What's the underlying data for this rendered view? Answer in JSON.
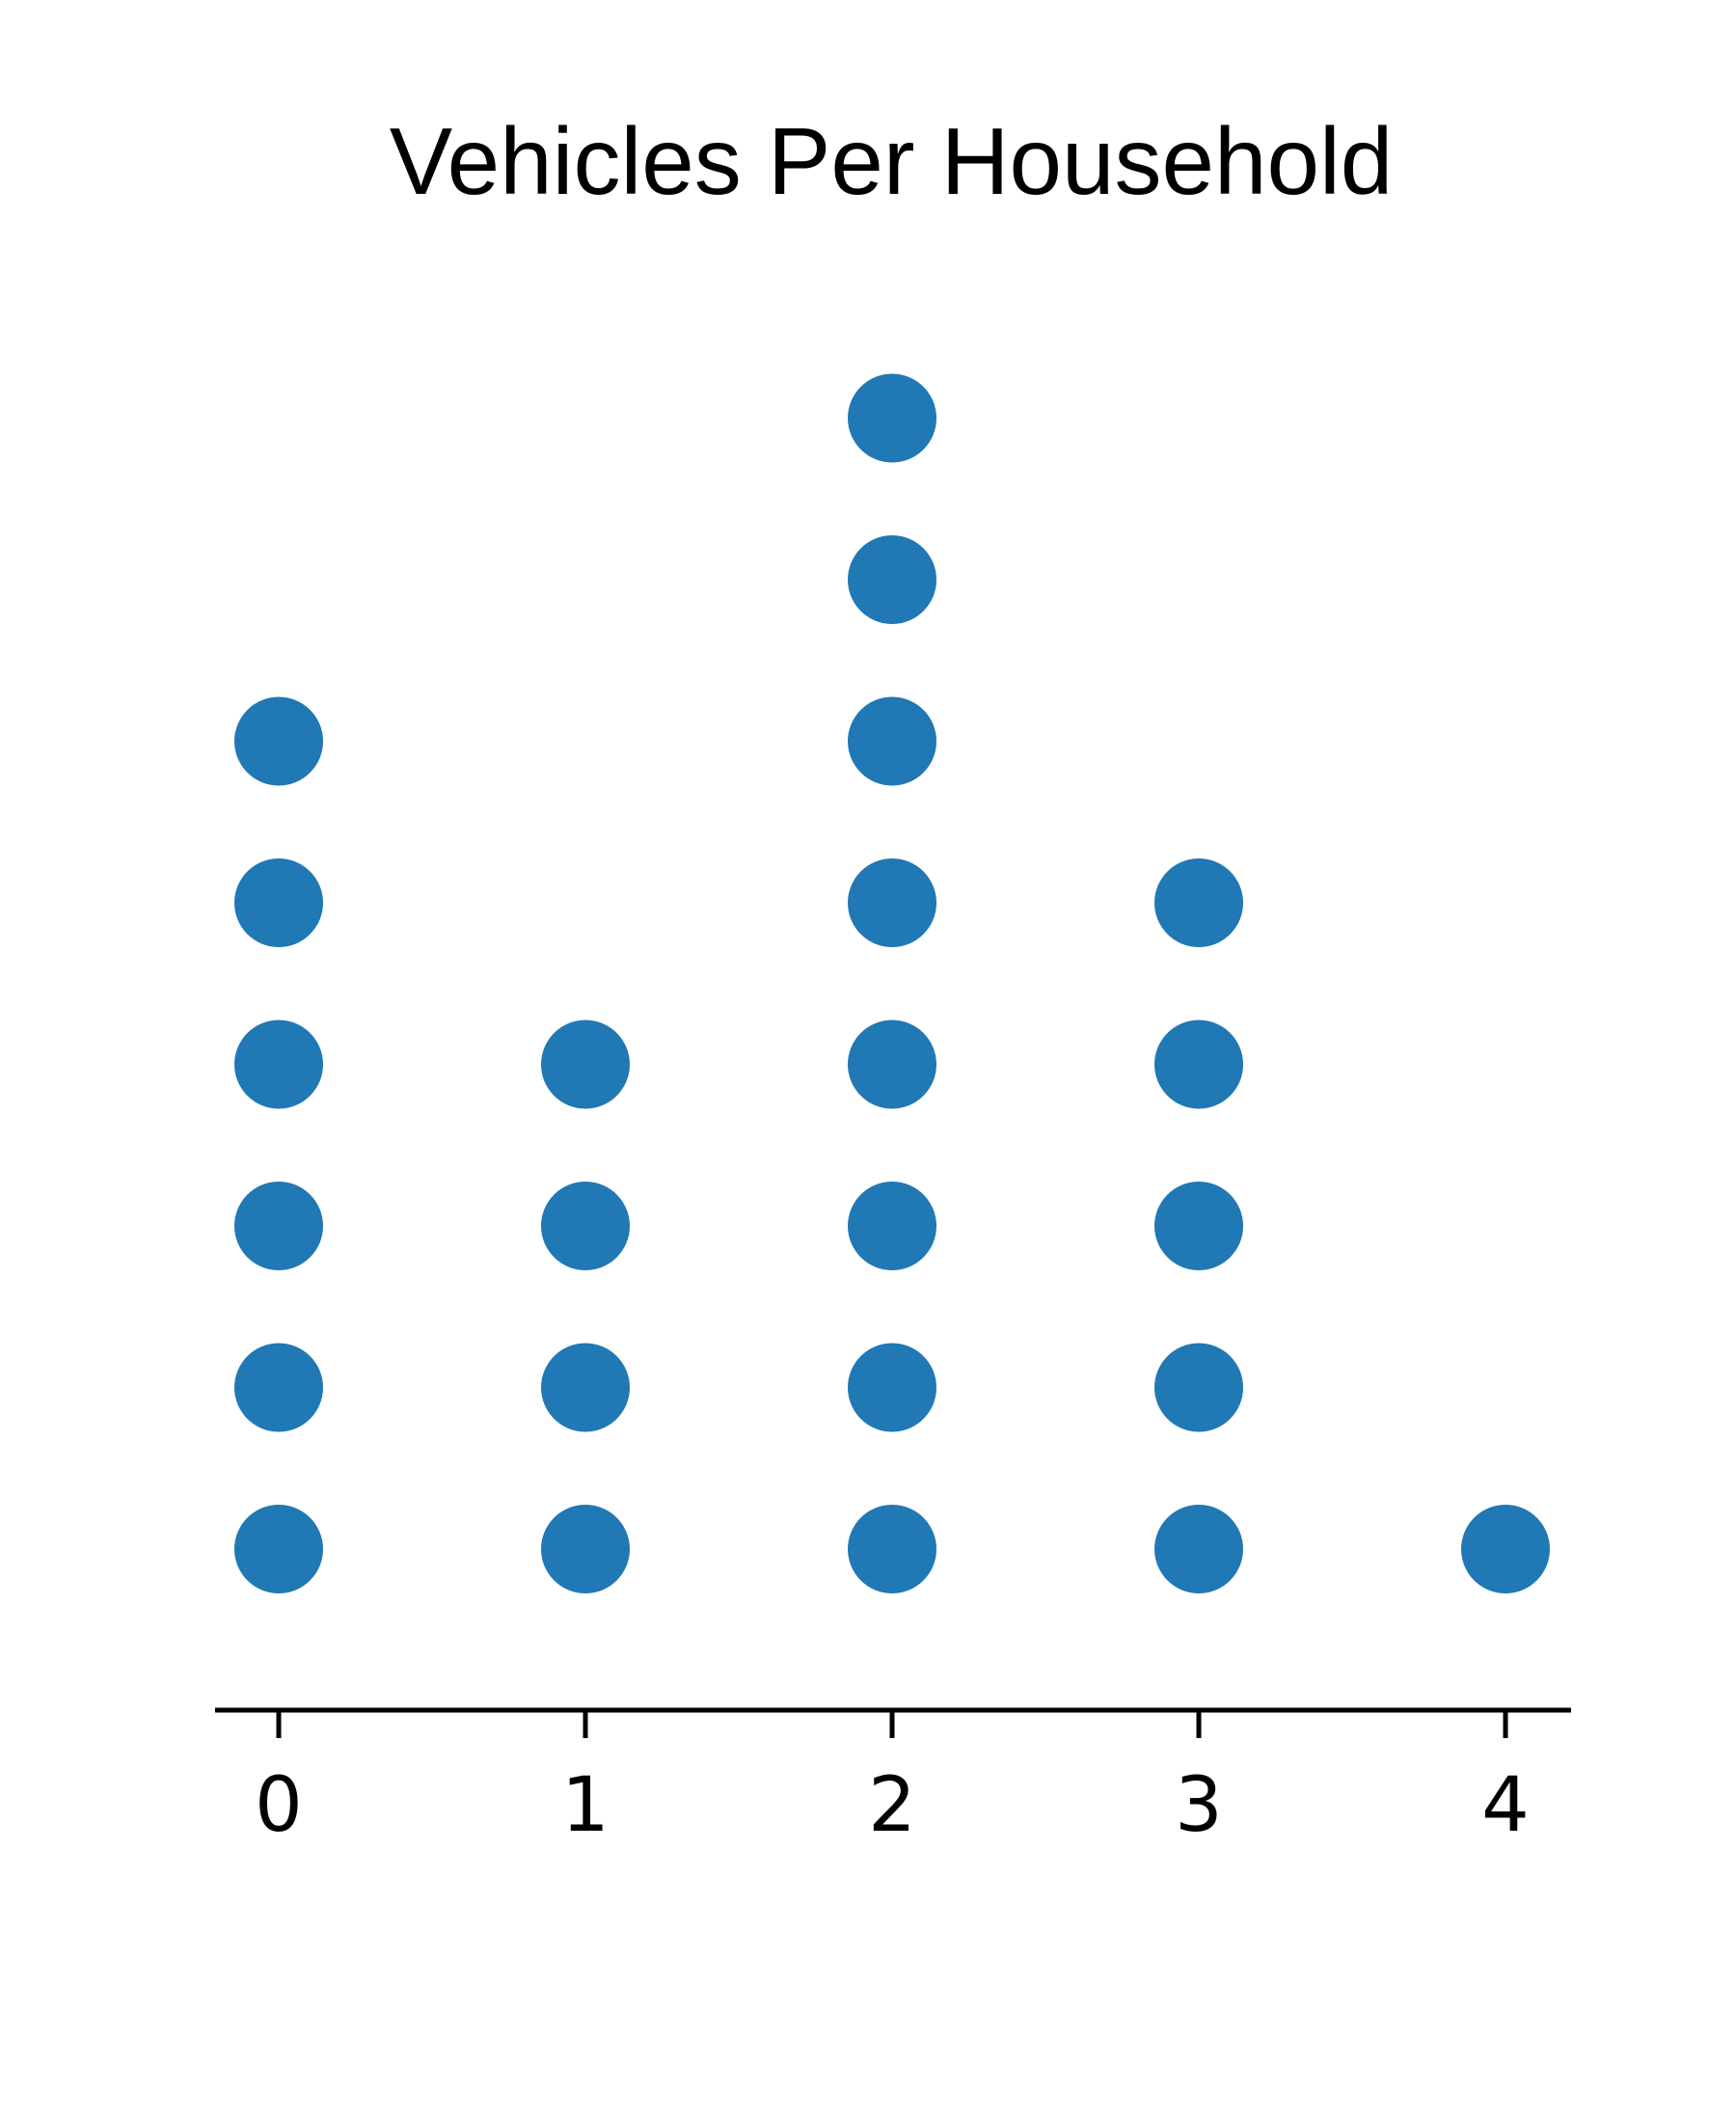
{
  "chart_data": {
    "type": "dot",
    "title": "Vehicles Per Household",
    "xlabel": "",
    "ylabel": "",
    "categories": [
      "0",
      "1",
      "2",
      "3",
      "4"
    ],
    "x": [
      0,
      1,
      2,
      3,
      4
    ],
    "counts": [
      6,
      4,
      8,
      5,
      1
    ],
    "xlim": [
      -0.2,
      4.2
    ],
    "grid": false,
    "legend": "none",
    "dot_color": "#2078b4",
    "axis_color": "#000000"
  }
}
